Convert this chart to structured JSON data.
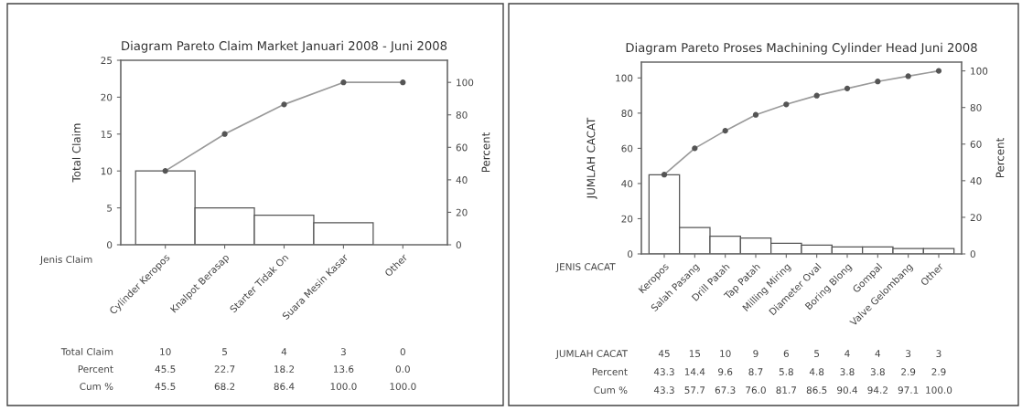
{
  "chart_data": [
    {
      "type": "bar",
      "title": "Diagram Pareto Claim Market Januari 2008 - Juni 2008",
      "ylabel": "Total Claim",
      "y2label": "Percent",
      "categories": [
        "Cylinder Keropos",
        "Knalpot Berasap",
        "Starter Tidak On",
        "Suara Mesin Kasar",
        "Other"
      ],
      "series": [
        {
          "color": "#ffffff",
          "values": [
            10,
            5,
            4,
            3,
            0
          ],
          "value_labels": [
            "10",
            "5",
            "4",
            "3",
            "0"
          ]
        },
        {
          "type": "line",
          "axis": "y2",
          "color": "#9a9a9a",
          "values": [
            45.5,
            68.2,
            86.4,
            100.0,
            100.0
          ],
          "value_labels": [
            "45.5",
            "68.2",
            "86.4",
            "100.0",
            "100.0"
          ]
        }
      ],
      "ylim": [
        0,
        25
      ],
      "yticks": [
        0,
        5,
        10,
        15,
        20,
        25
      ],
      "y2lim": [
        0,
        113.6
      ],
      "y2ticks": [
        0,
        20,
        40,
        60,
        80,
        100
      ],
      "marker": "circle",
      "line_style": "solid",
      "grid": false,
      "legend": false,
      "annotations": [
        "Jenis Claim",
        "Total Claim",
        "Percent",
        "Cum %",
        "45.5",
        "22.7",
        "18.2",
        "13.6",
        "0.0"
      ]
    },
    {
      "type": "bar",
      "title": "Diagram Pareto Proses Machining Cylinder Head Juni 2008",
      "ylabel": "JUMLAH CACAT",
      "y2label": "Percent",
      "categories": [
        "Keropos",
        "Salah Pasang",
        "Drill Patah",
        "Tap Patah",
        "Milling Miring",
        "Diameter Oval",
        "Boring Blong",
        "Gompal",
        "Valve Gelombang",
        "Other"
      ],
      "series": [
        {
          "color": "#ffffff",
          "values": [
            45,
            15,
            10,
            9,
            6,
            5,
            4,
            4,
            3,
            3
          ],
          "value_labels": [
            "45",
            "15",
            "10",
            "9",
            "6",
            "5",
            "4",
            "4",
            "3",
            "3"
          ]
        },
        {
          "type": "line",
          "axis": "y2",
          "color": "#9a9a9a",
          "values": [
            43.3,
            57.7,
            67.3,
            76.0,
            81.7,
            86.5,
            90.4,
            94.2,
            97.1,
            100.0
          ],
          "value_labels": [
            "43.3",
            "57.7",
            "67.3",
            "76.0",
            "81.7",
            "86.5",
            "90.4",
            "94.2",
            "97.1",
            "100.0"
          ]
        }
      ],
      "ylim": [
        0,
        109
      ],
      "yticks": [
        0,
        20,
        40,
        60,
        80,
        100
      ],
      "y2lim": [
        0,
        104.8
      ],
      "y2ticks": [
        0,
        20,
        40,
        60,
        80,
        100
      ],
      "marker": "circle",
      "line_style": "solid",
      "grid": false,
      "legend": false,
      "annotations": [
        "JENIS CACAT",
        "JUMLAH CACAT",
        "Percent",
        "Cum %",
        "43.3",
        "14.4",
        "9.6",
        "8.7",
        "5.8",
        "4.8",
        "3.8",
        "3.8",
        "2.9",
        "2.9"
      ]
    }
  ]
}
